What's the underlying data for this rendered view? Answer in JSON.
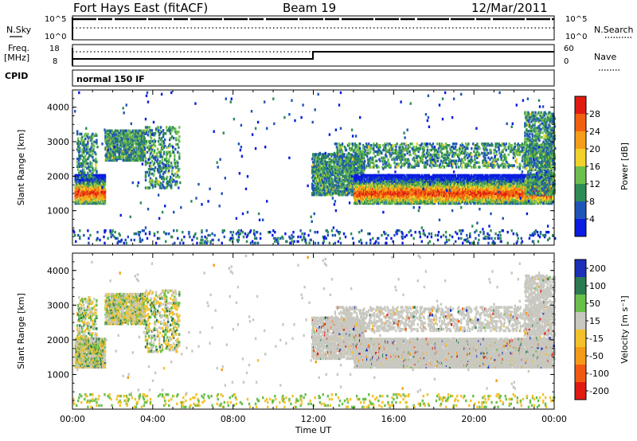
{
  "header": {
    "station": "Fort Hays East (fitACF)",
    "beam": "Beam 19",
    "date": "12/Mar/2011"
  },
  "summary_panel": {
    "left_label": "N.Sky",
    "left_ticks": [
      "10^5",
      "10^0"
    ],
    "right_label": "N.Search",
    "right_ticks": [
      "10^5",
      "10^0"
    ],
    "freq_label_top": "Freq.",
    "freq_label_bottom": "[MHz]",
    "freq_ticks": [
      "18",
      "8"
    ],
    "nave_label": "Nave",
    "nave_ticks": [
      "60",
      "0"
    ],
    "cpid_label": "CPID",
    "cpid_text": "normal 150 IF"
  },
  "chart_data": [
    {
      "type": "heatmap",
      "name": "power-panel",
      "xlabel": "",
      "ylabel": "Slant Range [km]",
      "xlim": [
        0,
        24
      ],
      "ylim": [
        0,
        4500
      ],
      "y_ticks": [
        "1000",
        "2000",
        "3000",
        "4000"
      ],
      "colorbar_label": "Power [dB]",
      "colorbar_ticks": [
        "4",
        "8",
        "12",
        "16",
        "20",
        "24",
        "28"
      ],
      "colors": [
        "#0a1de0",
        "#1f55b8",
        "#2f8c55",
        "#6dbf4d",
        "#f2d22a",
        "#f59d18",
        "#f2600f",
        "#e01c12"
      ]
    },
    {
      "type": "heatmap",
      "name": "velocity-panel",
      "xlabel": "Time UT",
      "ylabel": "Slant Range [km]",
      "xlim": [
        0,
        24
      ],
      "ylim": [
        0,
        4500
      ],
      "x_ticks": [
        "00:00",
        "04:00",
        "08:00",
        "12:00",
        "16:00",
        "20:00",
        "00:00"
      ],
      "y_ticks": [
        "1000",
        "2000",
        "3000",
        "4000"
      ],
      "colorbar_label": "Velocity [m s⁻¹]",
      "colorbar_ticks": [
        "200",
        "100",
        "50",
        "15",
        "-15",
        "-50",
        "-100",
        "-200"
      ],
      "colors": [
        "#1c30b8",
        "#2c7a52",
        "#6abf4b",
        "#c8c8c0",
        "#f3c22a",
        "#f59a18",
        "#f25a12",
        "#e01b12"
      ]
    }
  ]
}
